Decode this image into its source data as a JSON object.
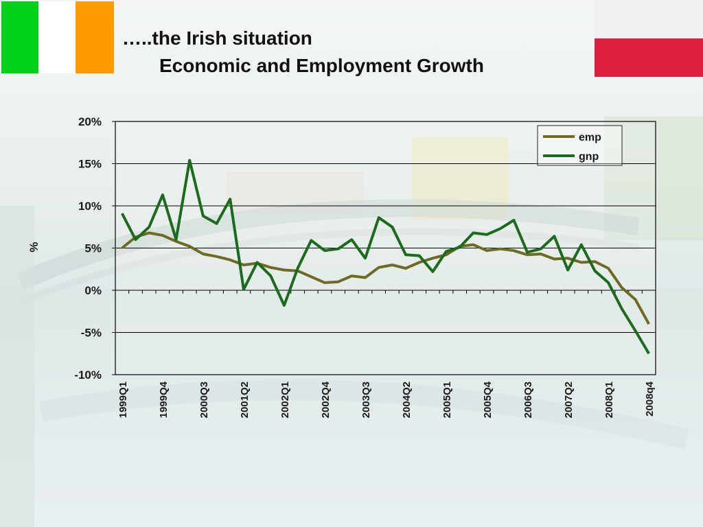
{
  "slide": {
    "title_line1": "…..the Irish situation",
    "title_line2": "Economic and Employment Growth"
  },
  "flags": {
    "ireland": [
      "#00d11b",
      "#ffffff",
      "#ff9a00"
    ],
    "poland": [
      "#f0f0f0",
      "#dc1f3c"
    ]
  },
  "chart_data": {
    "type": "line",
    "ylabel": "%",
    "ylim": [
      -10,
      20
    ],
    "yticks": [
      -10,
      -5,
      0,
      5,
      10,
      15,
      20
    ],
    "ytick_labels": [
      "-10%",
      "-5%",
      "0%",
      "5%",
      "10%",
      "15%",
      "20%"
    ],
    "x_count": 40,
    "x_labels": [
      {
        "index": 0,
        "label": "1999Q1"
      },
      {
        "index": 3,
        "label": "1999Q4"
      },
      {
        "index": 6,
        "label": "2000Q3"
      },
      {
        "index": 9,
        "label": "2001Q2"
      },
      {
        "index": 12,
        "label": "2002Q1"
      },
      {
        "index": 15,
        "label": "2002Q4"
      },
      {
        "index": 18,
        "label": "2003Q3"
      },
      {
        "index": 21,
        "label": "2004Q2"
      },
      {
        "index": 24,
        "label": "2005Q1"
      },
      {
        "index": 27,
        "label": "2005Q4"
      },
      {
        "index": 30,
        "label": "2006Q3"
      },
      {
        "index": 33,
        "label": "2007Q2"
      },
      {
        "index": 36,
        "label": "2008Q1"
      },
      {
        "index": 39,
        "label": "2008q4"
      }
    ],
    "grid": true,
    "legend": "top-right",
    "series": [
      {
        "name": "emp",
        "color": "#6e6a23",
        "values": [
          5.0,
          6.3,
          6.8,
          6.5,
          5.8,
          5.2,
          4.3,
          4.0,
          3.6,
          3.0,
          3.2,
          2.7,
          2.4,
          2.3,
          1.6,
          0.9,
          1.0,
          1.7,
          1.5,
          2.7,
          3.0,
          2.6,
          3.3,
          3.8,
          4.2,
          5.2,
          5.4,
          4.7,
          4.9,
          4.7,
          4.2,
          4.3,
          3.7,
          3.8,
          3.3,
          3.4,
          2.6,
          0.3,
          -1.1,
          -4.0
        ]
      },
      {
        "name": "gnp",
        "color": "#1c6b1c",
        "values": [
          9.1,
          6.0,
          7.5,
          11.3,
          6.0,
          15.4,
          8.8,
          7.9,
          10.8,
          0.1,
          3.3,
          1.7,
          -1.8,
          2.6,
          5.9,
          4.7,
          4.9,
          6.0,
          3.8,
          8.6,
          7.5,
          4.2,
          4.1,
          2.2,
          4.6,
          5.1,
          6.8,
          6.6,
          7.3,
          8.3,
          4.5,
          4.9,
          6.4,
          2.4,
          5.4,
          2.3,
          0.9,
          -2.2,
          -4.8,
          -7.5
        ]
      }
    ]
  }
}
